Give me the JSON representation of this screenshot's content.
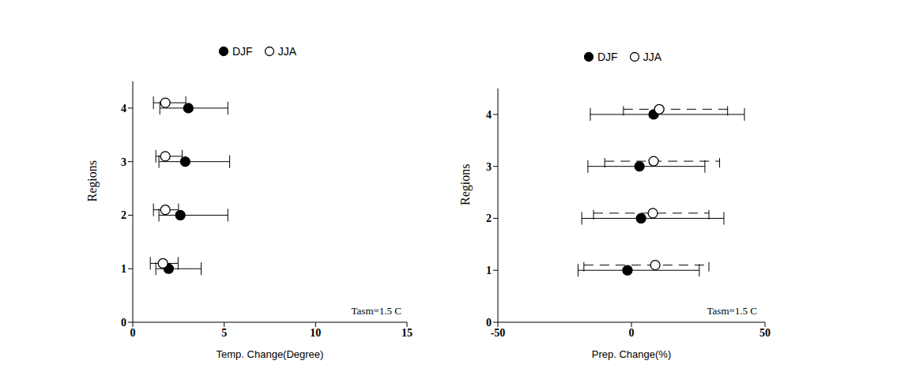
{
  "chart_data": [
    {
      "type": "scatter",
      "x_label": "Temp. Change(Degree)",
      "y_label": "Regions",
      "annotation": "Tasm=1.5 C",
      "legend": "top",
      "xlim": [
        0,
        15
      ],
      "xticks": [
        0,
        5,
        10,
        15
      ],
      "ylim": [
        0,
        4.5
      ],
      "yticks": [
        0,
        1,
        2,
        3,
        4
      ],
      "grid": false,
      "series": [
        {
          "name": "DJF",
          "color": "#000000",
          "marker": "circle",
          "line_style": "solid",
          "y": [
            1,
            2,
            3,
            4
          ],
          "x": [
            1.96,
            2.6,
            2.87,
            3.04
          ],
          "x_low": [
            1.26,
            1.43,
            1.43,
            1.48
          ],
          "x_high": [
            3.74,
            5.2,
            5.3,
            5.2
          ]
        },
        {
          "name": "JJA",
          "color": "#000000",
          "marker": "circle_open",
          "line_style": "solid",
          "y": [
            1,
            2,
            3,
            4
          ],
          "x": [
            1.65,
            1.78,
            1.78,
            1.78
          ],
          "x_low": [
            0.96,
            1.13,
            1.26,
            1.13
          ],
          "x_high": [
            2.48,
            2.5,
            2.7,
            2.9
          ]
        }
      ]
    },
    {
      "type": "scatter",
      "x_label": "Prep. Change(%)",
      "y_label": "Regions",
      "annotation": "Tasm=1.5 C",
      "legend": "top",
      "xlim": [
        -50,
        50
      ],
      "xticks": [
        -50,
        0,
        50
      ],
      "ylim": [
        0,
        4.5
      ],
      "yticks": [
        0,
        1,
        2,
        3,
        4
      ],
      "grid": false,
      "series": [
        {
          "name": "DJF",
          "color": "#000000",
          "marker": "circle",
          "line_style": "solid",
          "y": [
            1,
            2,
            3,
            4
          ],
          "x": [
            -1.5,
            3.6,
            3,
            8.3
          ],
          "x_low": [
            -20,
            -18.6,
            -16.3,
            -15.4
          ],
          "x_high": [
            25.4,
            34.6,
            27.5,
            42.3
          ]
        },
        {
          "name": "JJA",
          "color": "#000000",
          "marker": "circle_open",
          "line_style": "dashed",
          "y": [
            1,
            2,
            3,
            4
          ],
          "x": [
            8.9,
            8,
            8.3,
            10.4
          ],
          "x_low": [
            -17.8,
            -14.2,
            -10,
            -3
          ],
          "x_high": [
            29,
            29,
            33,
            36
          ]
        }
      ]
    }
  ]
}
